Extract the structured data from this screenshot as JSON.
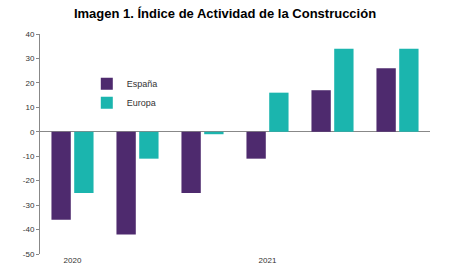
{
  "chart_data": {
    "type": "bar",
    "title": "Imagen 1. Índice de Actividad de la Construcción",
    "categories": [
      "2020",
      null,
      null,
      "2021",
      null,
      null
    ],
    "series": [
      {
        "name": "España",
        "color": "#4e2a6e",
        "values": [
          -36,
          -42,
          -25,
          -11,
          17,
          26
        ]
      },
      {
        "name": "Europa",
        "color": "#1bb5ae",
        "values": [
          -25,
          -11,
          -1,
          16,
          34,
          34
        ]
      }
    ],
    "ylim": [
      -50,
      40
    ],
    "yticks": [
      -50,
      -40,
      -30,
      -20,
      -10,
      0,
      10,
      20,
      30,
      40
    ],
    "grid": false,
    "legend": "top-left"
  }
}
